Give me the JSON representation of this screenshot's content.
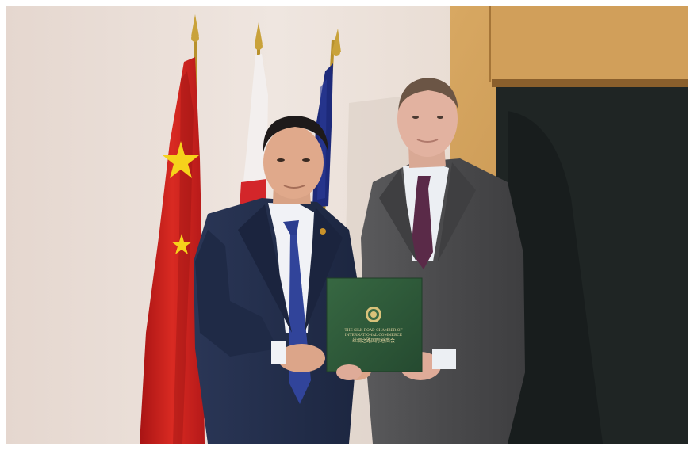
{
  "photo": {
    "subject": "two men in suits presenting a green certificate folder in front of flags",
    "folder": {
      "title_line_1": "THE SILK ROAD CHAMBER OF",
      "title_line_2": "INTERNATIONAL COMMERCE",
      "title_line_3": "丝绸之路国际总商会"
    }
  },
  "colors": {
    "wall": "#e8dcd4",
    "wood_panel": "#c9954e",
    "door": "#1e2423",
    "china_flag_red": "#cc1e1e",
    "china_flag_star": "#f6d21b",
    "eu_flag_blue": "#1d2a7a",
    "folder_green": "#2f5a3a",
    "left_suit": "#24304f",
    "right_suit": "#4e4e50",
    "left_tie": "#2b3d8f",
    "right_tie": "#5a2a48"
  }
}
